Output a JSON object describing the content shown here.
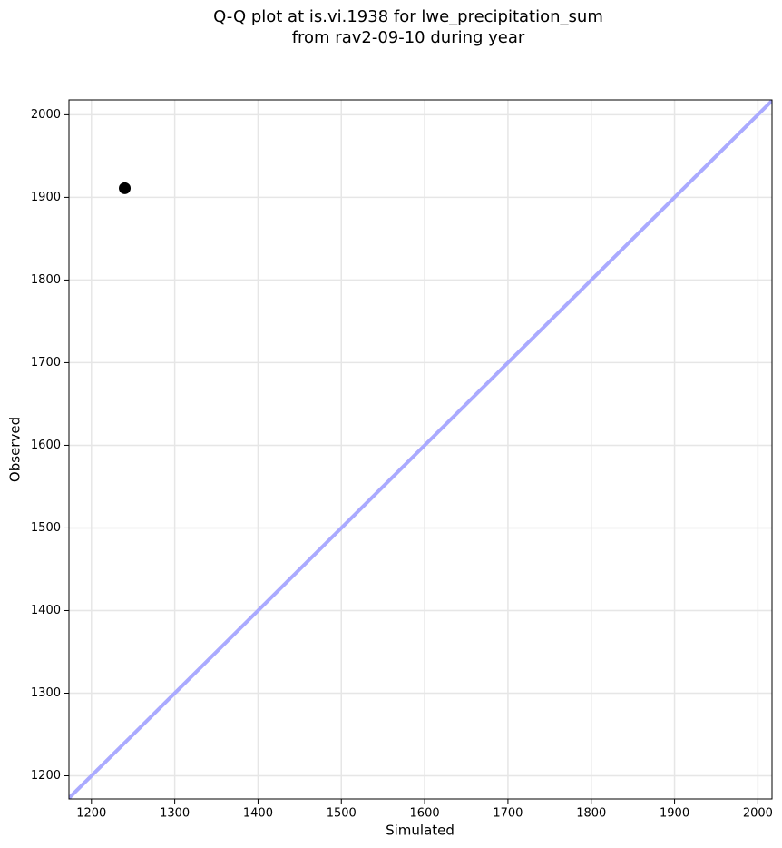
{
  "chart_data": {
    "type": "scatter",
    "title": [
      "Q-Q plot at is.vi.1938 for lwe_precipitation_sum",
      "from rav2-09-10 during year"
    ],
    "x_label": "Simulated",
    "y_label": "Observed",
    "x": [
      1240
    ],
    "y": [
      1911
    ],
    "color": "#000000",
    "reference_line": {
      "x": [
        1173,
        2017
      ],
      "y": [
        1173,
        2017
      ],
      "color": "#aaaaff"
    },
    "xlim": [
      1173,
      2017
    ],
    "ylim": [
      1172,
      2018
    ],
    "xticks": [
      1200,
      1300,
      1400,
      1500,
      1600,
      1700,
      1800,
      1900,
      2000
    ],
    "yticks": [
      1200,
      1300,
      1400,
      1500,
      1600,
      1700,
      1800,
      1900,
      2000
    ],
    "grid": true
  }
}
